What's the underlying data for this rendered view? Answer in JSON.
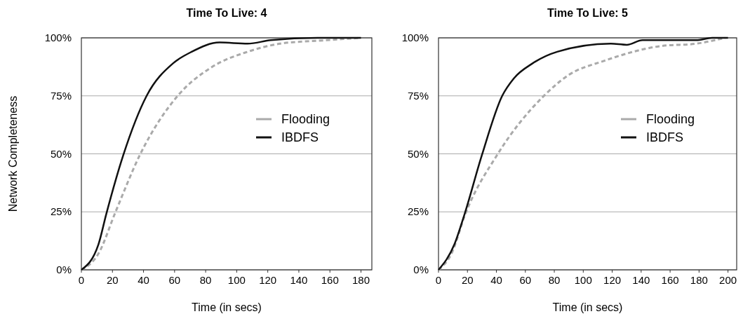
{
  "chart_data": [
    {
      "type": "line",
      "title": "Time To Live: 4",
      "xlabel": "Time (in secs)",
      "ylabel": "Network Completeness",
      "xlim": [
        0,
        187
      ],
      "xticks": [
        0,
        20,
        40,
        60,
        80,
        100,
        120,
        140,
        160,
        180
      ],
      "ylim": [
        0,
        100
      ],
      "yticks": [
        {
          "value": 0,
          "label": "0%"
        },
        {
          "value": 25,
          "label": "25%"
        },
        {
          "value": 50,
          "label": "50%"
        },
        {
          "value": 75,
          "label": "75%"
        },
        {
          "value": 100,
          "label": "100%"
        }
      ],
      "grid": "y",
      "legend": "right",
      "series": [
        {
          "name": "Flooding",
          "color": "#aaaaaa",
          "line_style": "dashed",
          "x": [
            0,
            11,
            22,
            38,
            62,
            83,
            107,
            128,
            158,
            180
          ],
          "values": [
            0,
            7,
            25,
            50,
            75,
            87,
            94,
            97.5,
            99,
            100
          ]
        },
        {
          "name": "IBDFS",
          "color": "#111111",
          "line_style": "solid",
          "x": [
            0,
            11,
            16,
            27,
            42,
            59,
            71,
            89,
            107,
            122,
            152,
            180
          ],
          "values": [
            0,
            11,
            24,
            49.5,
            75,
            89,
            94,
            98,
            97.5,
            99,
            100,
            100
          ]
        }
      ]
    },
    {
      "type": "line",
      "title": "Time To Live: 5",
      "xlabel": "Time (in secs)",
      "xlim": [
        0,
        206
      ],
      "xticks": [
        0,
        20,
        40,
        60,
        80,
        100,
        120,
        140,
        160,
        180,
        200
      ],
      "ylim": [
        0,
        100
      ],
      "yticks": [
        {
          "value": 0,
          "label": "0%"
        },
        {
          "value": 25,
          "label": "25%"
        },
        {
          "value": 50,
          "label": "50%"
        },
        {
          "value": 75,
          "label": "75%"
        },
        {
          "value": 100,
          "label": "100%"
        }
      ],
      "grid": "y",
      "legend": "right",
      "series": [
        {
          "name": "Flooding",
          "color": "#aaaaaa",
          "line_style": "dashed",
          "x": [
            0,
            9,
            18.5,
            41,
            72,
            90,
            114,
            154,
            178,
            198
          ],
          "values": [
            0,
            7,
            24,
            50,
            74.5,
            84,
            90,
            96.5,
            97.5,
            100
          ]
        },
        {
          "name": "IBDFS",
          "color": "#111111",
          "line_style": "solid",
          "x": [
            0,
            11,
            18,
            30,
            44,
            52,
            65,
            82,
            119,
            130,
            141,
            178,
            189,
            200
          ],
          "values": [
            0,
            11,
            24,
            49.5,
            75,
            82.5,
            89,
            94,
            97.5,
            97,
            99,
            99,
            100,
            100
          ]
        }
      ]
    }
  ]
}
